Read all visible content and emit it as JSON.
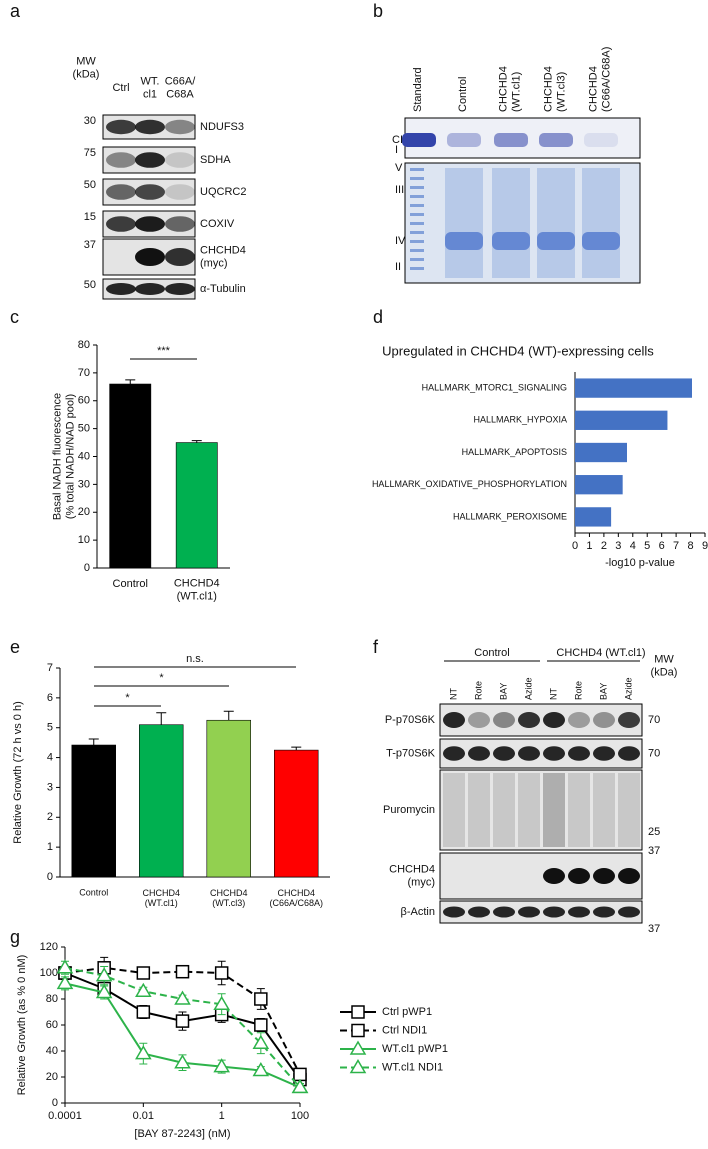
{
  "panel_labels": [
    "a",
    "b",
    "c",
    "d",
    "e",
    "f",
    "g"
  ],
  "blot_a": {
    "mw_header": "MW\n(kDa)",
    "lanes": [
      "Ctrl",
      "WT.\ncl1",
      "C66A/\nC68A"
    ],
    "rows": [
      {
        "label": "NDUFS3",
        "mw": 30
      },
      {
        "label": "SDHA",
        "mw": 75
      },
      {
        "label": "UQCRC2",
        "mw": 50
      },
      {
        "label": "COXIV",
        "mw": 15
      },
      {
        "label": "CHCHD4\n(myc)",
        "mw": 37
      },
      {
        "label": "α-Tubulin",
        "mw": 50
      }
    ]
  },
  "blot_b": {
    "lanes": [
      "Standard",
      "Control",
      "CHCHD4\n(WT.cl1)",
      "CHCHD4\n(WT.cl3)",
      "CHCHD4\n(C66A/C68A)"
    ],
    "bands": [
      "CI",
      "I",
      "V",
      "III",
      "IV",
      "II"
    ]
  },
  "blot_f": {
    "groups": [
      "Control",
      "CHCHD4 (WT.cl1)"
    ],
    "lanes": [
      "NT",
      "Rote",
      "BAY",
      "Azide",
      "NT",
      "Rote",
      "BAY",
      "Azide"
    ],
    "mw_header": "MW\n(kDa)",
    "rows": [
      {
        "label": "P-p70S6K",
        "mw": 70
      },
      {
        "label": "T-p70S6K",
        "mw": 70
      },
      {
        "label": "Puromycin",
        "mw": 25
      },
      {
        "label": "CHCHD4\n(myc)",
        "mw": 37
      },
      {
        "label": "β-Actin",
        "mw": 37
      }
    ]
  },
  "chart_data": [
    {
      "type": "bar",
      "ylabel": "Basal NADH fluorescence\n(% total NADH/NAD pool)",
      "categories": [
        "Control",
        "CHCHD4\n(WT.cl1)"
      ],
      "values": [
        66,
        45
      ],
      "errors": [
        1.5,
        0.7
      ],
      "colors": [
        "#000000",
        "#00b050"
      ],
      "ylim": [
        0,
        80
      ],
      "yticks": [
        0,
        10,
        20,
        30,
        40,
        50,
        60,
        70,
        80
      ],
      "annotations": [
        "***"
      ]
    },
    {
      "type": "barh",
      "title": "Upregulated in CHCHD4 (WT)-expressing cells",
      "categories": [
        "HALLMARK_MTORC1_SIGNALING",
        "HALLMARK_HYPOXIA",
        "HALLMARK_APOPTOSIS",
        "HALLMARK_OXIDATIVE_PHOSPHORYLATION",
        "HALLMARK_PEROXISOME"
      ],
      "values": [
        8.1,
        6.4,
        3.6,
        3.3,
        2.5
      ],
      "color": "#4472c4",
      "xlabel": "-log10 p-value",
      "xlim": [
        0,
        9
      ],
      "xticks": [
        0,
        1,
        2,
        3,
        4,
        5,
        6,
        7,
        8,
        9
      ]
    },
    {
      "type": "bar",
      "ylabel": "Relative Growth (72 h vs 0 h)",
      "categories": [
        "Control",
        "CHCHD4\n(WT.cl1)",
        "CHCHD4\n(WT.cl3)",
        "CHCHD4\n(C66A/C68A)"
      ],
      "values": [
        4.42,
        5.1,
        5.25,
        4.25
      ],
      "errors": [
        0.2,
        0.4,
        0.3,
        0.1
      ],
      "colors": [
        "#000000",
        "#00b050",
        "#92d050",
        "#ff0000"
      ],
      "ylim": [
        0,
        7
      ],
      "yticks": [
        0,
        1,
        2,
        3,
        4,
        5,
        6,
        7
      ],
      "annotations": [
        "n.s.",
        "*",
        "*"
      ]
    },
    {
      "type": "line",
      "x": [
        0.0001,
        0.001,
        0.01,
        0.1,
        1,
        10,
        100
      ],
      "xscale": "log",
      "xlim": [
        0.0001,
        100
      ],
      "xticks": [
        0.0001,
        0.01,
        1,
        100
      ],
      "ylim": [
        0,
        120
      ],
      "yticks": [
        0,
        20,
        40,
        60,
        80,
        100,
        120
      ],
      "xlabel": "[BAY 87-2243] (nM)",
      "ylabel": "Relative Growth (as % 0 nM)",
      "legend": "right",
      "series": [
        {
          "name": "Ctrl pWP1",
          "color": "#000000",
          "dashed": false,
          "marker": "square",
          "values": [
            100,
            88,
            70,
            63,
            68,
            60,
            18
          ],
          "errors": [
            5,
            6,
            5,
            7,
            6,
            5,
            4
          ]
        },
        {
          "name": "Ctrl NDI1",
          "color": "#000000",
          "dashed": true,
          "marker": "square",
          "values": [
            100,
            104,
            100,
            101,
            100,
            80,
            22
          ],
          "errors": [
            3,
            8,
            3,
            2,
            9,
            8,
            3
          ]
        },
        {
          "name": "WT.cl1 pWP1",
          "color": "#2db34a",
          "dashed": false,
          "marker": "triangle",
          "values": [
            92,
            85,
            38,
            31,
            28,
            25,
            12
          ],
          "errors": [
            5,
            5,
            8,
            6,
            5,
            3,
            3
          ]
        },
        {
          "name": "WT.cl1 NDI1",
          "color": "#2db34a",
          "dashed": true,
          "marker": "triangle",
          "values": [
            104,
            98,
            86,
            80,
            76,
            46,
            12
          ],
          "errors": [
            5,
            7,
            3,
            3,
            8,
            8,
            3
          ]
        }
      ]
    }
  ]
}
